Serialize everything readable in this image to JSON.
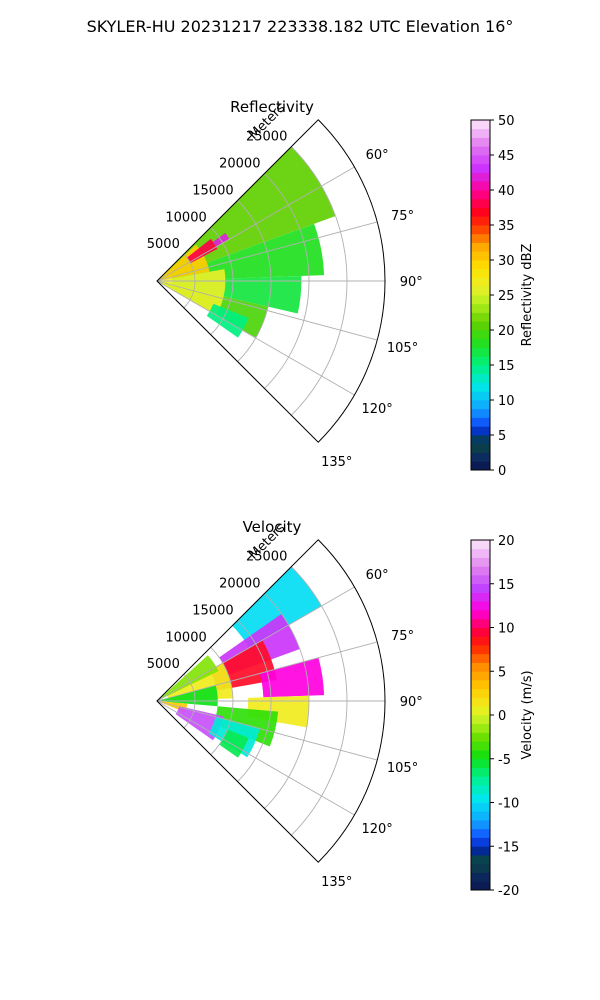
{
  "figure": {
    "suptitle": "SKYLER-HU  20231217  223338.182 UTC Elevation 16°"
  },
  "chart_data": [
    {
      "type": "heatmap",
      "title": "Reflectivity",
      "projection": "polar-sector",
      "radial_axis_label": "Meters",
      "radial_ticks": [
        "5000",
        "10000",
        "15000",
        "20000",
        "25000"
      ],
      "radial_tick_values": [
        5000,
        10000,
        15000,
        20000,
        25000
      ],
      "radial_max": 30000,
      "angle_ticks": [
        "60°",
        "75°",
        "90°",
        "105°",
        "120°",
        "135°"
      ],
      "angle_tick_values": [
        60,
        75,
        90,
        105,
        120,
        135
      ],
      "angle_range_deg": [
        45,
        135
      ],
      "grid": true,
      "colorbar": {
        "label": "Reflectivity dBZ",
        "range": [
          0,
          50
        ],
        "ticks": [
          "0",
          "5",
          "10",
          "15",
          "20",
          "25",
          "30",
          "35",
          "40",
          "45",
          "50"
        ],
        "tick_values": [
          0,
          5,
          10,
          15,
          20,
          25,
          30,
          35,
          40,
          45,
          50
        ]
      },
      "echo_regions": [
        {
          "az": [
            45,
            70
          ],
          "r": [
            300,
            25000
          ],
          "value": 21
        },
        {
          "az": [
            70,
            88
          ],
          "r": [
            2000,
            22000
          ],
          "value": 18
        },
        {
          "az": [
            88,
            103
          ],
          "r": [
            2000,
            19000
          ],
          "value": 17
        },
        {
          "az": [
            103,
            120
          ],
          "r": [
            500,
            15000
          ],
          "value": 20
        },
        {
          "az": [
            47,
            80
          ],
          "r": [
            300,
            7000
          ],
          "value": 30
        },
        {
          "az": [
            80,
            120
          ],
          "r": [
            300,
            9000
          ],
          "value": 26
        },
        {
          "az": [
            52,
            62
          ],
          "r": [
            5000,
            9000
          ],
          "value": 38
        },
        {
          "az": [
            55,
            60
          ],
          "r": [
            9000,
            11000
          ],
          "value": 42
        },
        {
          "az": [
            112,
            125
          ],
          "r": [
            8000,
            13000
          ],
          "value": 15
        }
      ]
    },
    {
      "type": "heatmap",
      "title": "Velocity",
      "projection": "polar-sector",
      "radial_axis_label": "Meters",
      "radial_ticks": [
        "5000",
        "10000",
        "15000",
        "20000",
        "25000"
      ],
      "radial_tick_values": [
        5000,
        10000,
        15000,
        20000,
        25000
      ],
      "radial_max": 30000,
      "angle_ticks": [
        "60°",
        "75°",
        "90°",
        "105°",
        "120°",
        "135°"
      ],
      "angle_tick_values": [
        60,
        75,
        90,
        105,
        120,
        135
      ],
      "angle_range_deg": [
        45,
        135
      ],
      "grid": true,
      "colorbar": {
        "label": "Velocity (m/s)",
        "range": [
          -20,
          20
        ],
        "ticks": [
          "-20",
          "-15",
          "-10",
          "-5",
          "0",
          "5",
          "10",
          "15",
          "20"
        ],
        "tick_values": [
          -20,
          -15,
          -10,
          -5,
          0,
          5,
          10,
          15,
          20
        ]
      },
      "echo_regions": [
        {
          "az": [
            45,
            60
          ],
          "r": [
            14000,
            25000
          ],
          "value": -10
        },
        {
          "az": [
            55,
            70
          ],
          "r": [
            10000,
            20000
          ],
          "value": 14
        },
        {
          "az": [
            60,
            80
          ],
          "r": [
            8000,
            16000
          ],
          "value": 9
        },
        {
          "az": [
            75,
            88
          ],
          "r": [
            14000,
            22000
          ],
          "value": 12
        },
        {
          "az": [
            88,
            100
          ],
          "r": [
            12000,
            20000
          ],
          "value": 1
        },
        {
          "az": [
            95,
            112
          ],
          "r": [
            8000,
            16000
          ],
          "value": -4
        },
        {
          "az": [
            60,
            88
          ],
          "r": [
            1500,
            10000
          ],
          "value": 1
        },
        {
          "az": [
            48,
            64
          ],
          "r": [
            500,
            9000
          ],
          "value": -2
        },
        {
          "az": [
            75,
            95
          ],
          "r": [
            500,
            8000
          ],
          "value": -5
        },
        {
          "az": [
            95,
            112
          ],
          "r": [
            500,
            4000
          ],
          "value": 3
        },
        {
          "az": [
            103,
            125
          ],
          "r": [
            3000,
            9000
          ],
          "value": 15
        },
        {
          "az": [
            105,
            122
          ],
          "r": [
            8000,
            14000
          ],
          "value": -9
        },
        {
          "az": [
            112,
            125
          ],
          "r": [
            10000,
            13000
          ],
          "value": -6
        }
      ]
    }
  ]
}
